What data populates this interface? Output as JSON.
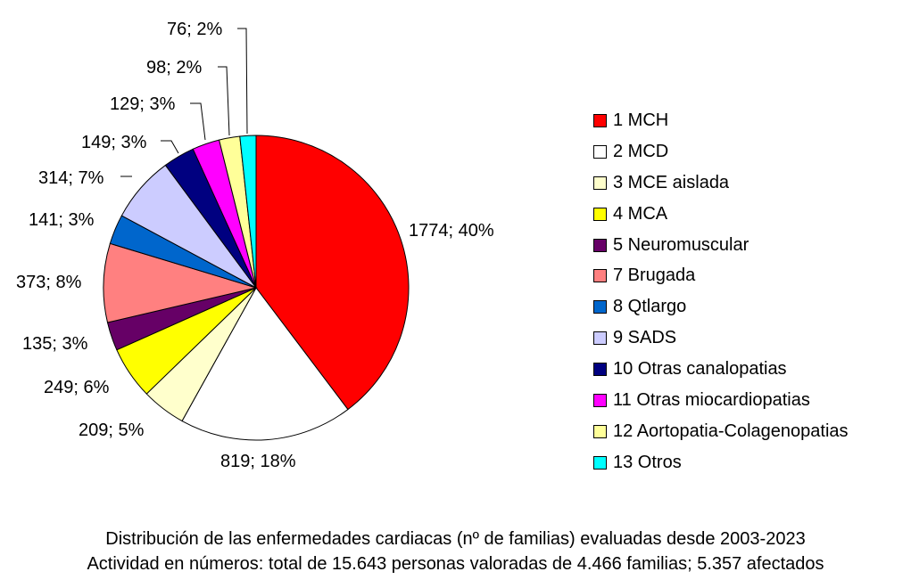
{
  "chart_data": {
    "type": "pie",
    "start_angle_deg": 0,
    "direction": "clockwise",
    "slices": [
      {
        "legend": "1 MCH",
        "value": 1774,
        "label": "1774; 40%",
        "color": "#FF0000"
      },
      {
        "legend": "2 MCD",
        "value": 819,
        "label": "819; 18%",
        "color": "#FFFFFF"
      },
      {
        "legend": "3 MCE aislada",
        "value": 209,
        "label": "209; 5%",
        "color": "#FFFFCC"
      },
      {
        "legend": "4 MCA",
        "value": 249,
        "label": "249; 6%",
        "color": "#FFFF00"
      },
      {
        "legend": "5 Neuromuscular",
        "value": 135,
        "label": "135; 3%",
        "color": "#660066"
      },
      {
        "legend": "7 Brugada",
        "value": 373,
        "label": "373; 8%",
        "color": "#FF8080"
      },
      {
        "legend": "8 Qtlargo",
        "value": 141,
        "label": "141; 3%",
        "color": "#0066CC"
      },
      {
        "legend": "9 SADS",
        "value": 314,
        "label": "314; 7%",
        "color": "#CCCCFF"
      },
      {
        "legend": "10 Otras canalopatias",
        "value": 149,
        "label": "149; 3%",
        "color": "#000080"
      },
      {
        "legend": "11 Otras miocardiopatias",
        "value": 129,
        "label": "129; 3%",
        "color": "#FF00FF"
      },
      {
        "legend": "12 Aortopatia-Colagenopatias",
        "value": 98,
        "label": "98; 2%",
        "color": "#FFFF99"
      },
      {
        "legend": "13 Otros",
        "value": 76,
        "label": "76; 2%",
        "color": "#00FFFF"
      }
    ],
    "legend_position": "right",
    "caption": [
      "Distribución de las enfermedades cardiacas (nº de familias) evaluadas desde 2003-2023",
      "Actividad en números: total de 15.643 personas valoradas de 4.466 familias; 5.357 afectados"
    ]
  }
}
